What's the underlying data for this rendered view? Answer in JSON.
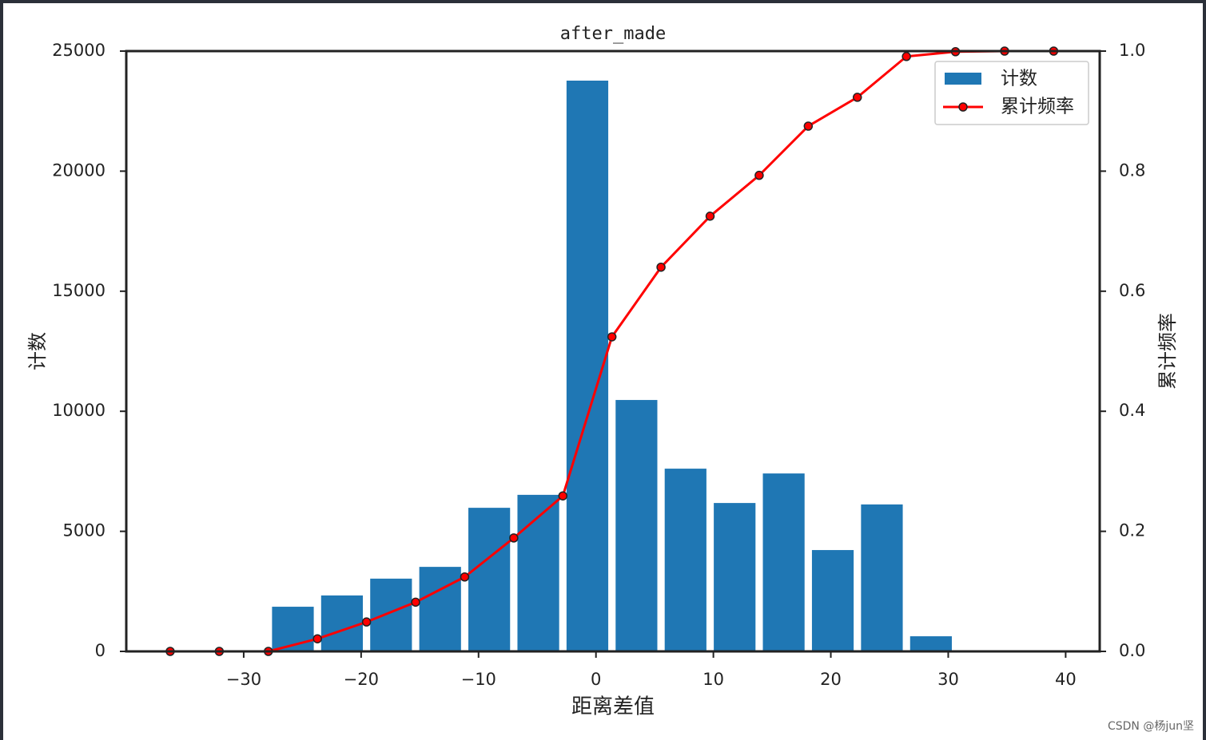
{
  "chart_data": {
    "type": "histogram",
    "title": "after_made",
    "xlabel": "距离差值",
    "ylabel": "计数",
    "y2label": "累计频率",
    "bins": [
      -36.26,
      -32.08,
      -27.9,
      -23.72,
      -19.54,
      -15.36,
      -11.18,
      -7.0,
      -2.82,
      1.36,
      5.54,
      9.72,
      13.9,
      18.08,
      22.26,
      26.44,
      30.62,
      34.8,
      38.98
    ],
    "name": "计数",
    "color": "#1f77b4",
    "values": [
      0,
      0,
      1860,
      2330,
      3030,
      3520,
      5980,
      6520,
      23770,
      10470,
      7610,
      6180,
      7410,
      4220,
      6120,
      630,
      0,
      0
    ],
    "line": {
      "name": "累计频率",
      "color": "#ff0000",
      "axis": "y2",
      "values": [
        0,
        0,
        0,
        0.021,
        0.049,
        0.082,
        0.124,
        0.189,
        0.259,
        0.524,
        0.64,
        0.725,
        0.793,
        0.875,
        0.923,
        0.991,
        0.999,
        1.0,
        1.0
      ]
    },
    "xlim": [
      -40,
      42.9
    ],
    "xticks": [
      {
        "value": -30,
        "label": "−30"
      },
      {
        "value": -20,
        "label": "−20"
      },
      {
        "value": -10,
        "label": "−10"
      },
      0,
      10,
      20,
      30,
      40
    ],
    "ylim": [
      0,
      25000
    ],
    "yticks": [
      0,
      5000,
      10000,
      15000,
      20000,
      25000
    ],
    "y2lim": [
      0,
      1
    ],
    "y2ticks": [
      {
        "value": 0,
        "label": "0.0"
      },
      {
        "value": 0.2,
        "label": "0.2"
      },
      {
        "value": 0.4,
        "label": "0.4"
      },
      {
        "value": 0.6,
        "label": "0.6"
      },
      {
        "value": 0.8,
        "label": "0.8"
      },
      {
        "value": 1,
        "label": "1.0"
      }
    ],
    "legend": "upper right",
    "annotation": "CSDN @杨jun坚"
  }
}
